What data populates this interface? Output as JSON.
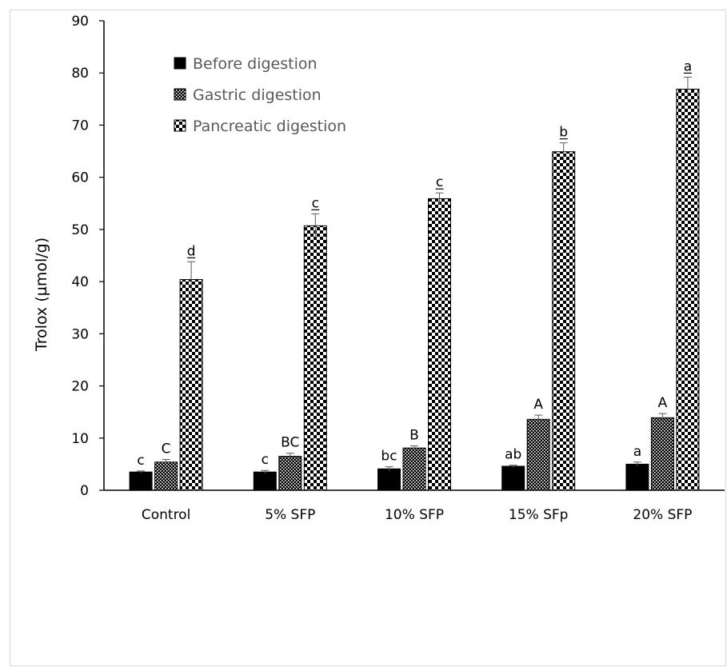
{
  "chart_data": {
    "type": "bar",
    "title": "",
    "xlabel": "",
    "ylabel": "Trolox (µmol/g)",
    "ylim": [
      0,
      90
    ],
    "yticks": [
      0,
      10,
      20,
      30,
      40,
      50,
      60,
      70,
      80,
      90
    ],
    "grid": false,
    "legend_position": "top-left",
    "categories": [
      "Control",
      "5% SFP",
      "10% SFP",
      "15% SFp",
      "20% SFP"
    ],
    "series": [
      {
        "name": "Before digestion",
        "pattern": "solid",
        "values": [
          3.5,
          3.5,
          4.1,
          4.6,
          5.0
        ],
        "errors": [
          0.2,
          0.3,
          0.4,
          0.2,
          0.4
        ],
        "labels": [
          "c",
          "c",
          "bc",
          "ab",
          "a"
        ],
        "labels_underlined": false
      },
      {
        "name": "Gastric digestion",
        "pattern": "dots",
        "values": [
          5.4,
          6.5,
          8.1,
          13.6,
          13.9
        ],
        "errors": [
          0.5,
          0.6,
          0.4,
          0.8,
          0.8
        ],
        "labels": [
          "C",
          "BC",
          "B",
          "A",
          "A"
        ],
        "labels_underlined": false
      },
      {
        "name": "Pancreatic digestion",
        "pattern": "checker",
        "values": [
          40.4,
          50.7,
          55.9,
          64.9,
          76.9
        ],
        "errors": [
          3.4,
          2.3,
          1.1,
          1.7,
          2.3
        ],
        "labels": [
          "d",
          "c",
          "c",
          "b",
          "a"
        ],
        "labels_underlined": true
      }
    ]
  },
  "colors": {
    "bar_fill": "#000000",
    "axis": "#000000",
    "tick_label": "#000000",
    "legend_text": "#595959",
    "error_bar": "#595959"
  }
}
